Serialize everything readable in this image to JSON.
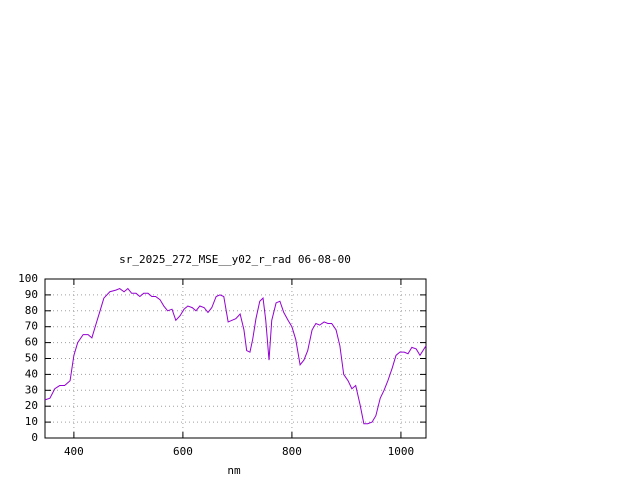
{
  "chart_data": {
    "type": "line",
    "title": "sr_2025_272_MSE__y02_r_rad 06-08-00",
    "x_label": "nm",
    "x": [
      347,
      356,
      365,
      374,
      383,
      393,
      400,
      407,
      417,
      426,
      433,
      440,
      448,
      455,
      466,
      477,
      484,
      492,
      499,
      506,
      514,
      521,
      528,
      536,
      543,
      550,
      558,
      565,
      572,
      580,
      587,
      595,
      602,
      609,
      617,
      624,
      631,
      639,
      646,
      653,
      661,
      668,
      675,
      683,
      690,
      697,
      705,
      712,
      717,
      723,
      728,
      734,
      741,
      747,
      752,
      758,
      763,
      771,
      778,
      785,
      793,
      800,
      807,
      815,
      822,
      829,
      837,
      844,
      851,
      859,
      866,
      873,
      881,
      888,
      895,
      903,
      910,
      917,
      925,
      932,
      939,
      947,
      954,
      962,
      969,
      976,
      984,
      991,
      998,
      1006,
      1013,
      1020,
      1028,
      1035,
      1046
    ],
    "series": [
      {
        "color": "#9400d3",
        "values": [
          24,
          25,
          31,
          33,
          33,
          36,
          52,
          60,
          65,
          65,
          63,
          71,
          80,
          88,
          92,
          93,
          94,
          92,
          94,
          91,
          91,
          89,
          91,
          91,
          89,
          89,
          87,
          83,
          80,
          81,
          74,
          77,
          81,
          83,
          82,
          80,
          83,
          82,
          79,
          82,
          89,
          90,
          89,
          73,
          74,
          75,
          78,
          68,
          55,
          54,
          62,
          75,
          86,
          88,
          74,
          49,
          74,
          85,
          86,
          79,
          74,
          70,
          62,
          46,
          49,
          55,
          68,
          72,
          71,
          73,
          72,
          72,
          68,
          58,
          40,
          36,
          31,
          33,
          21,
          9,
          9,
          10,
          14,
          25,
          30,
          36,
          44,
          52,
          54,
          54,
          53,
          57,
          56,
          52,
          58
        ]
      }
    ],
    "xlim": [
      347,
      1046
    ],
    "ylim": [
      0,
      100
    ],
    "xticks": [
      400,
      600,
      800,
      1000
    ],
    "yticks": [
      0,
      10,
      20,
      30,
      40,
      50,
      60,
      70,
      80,
      90,
      100
    ],
    "grid": true
  }
}
